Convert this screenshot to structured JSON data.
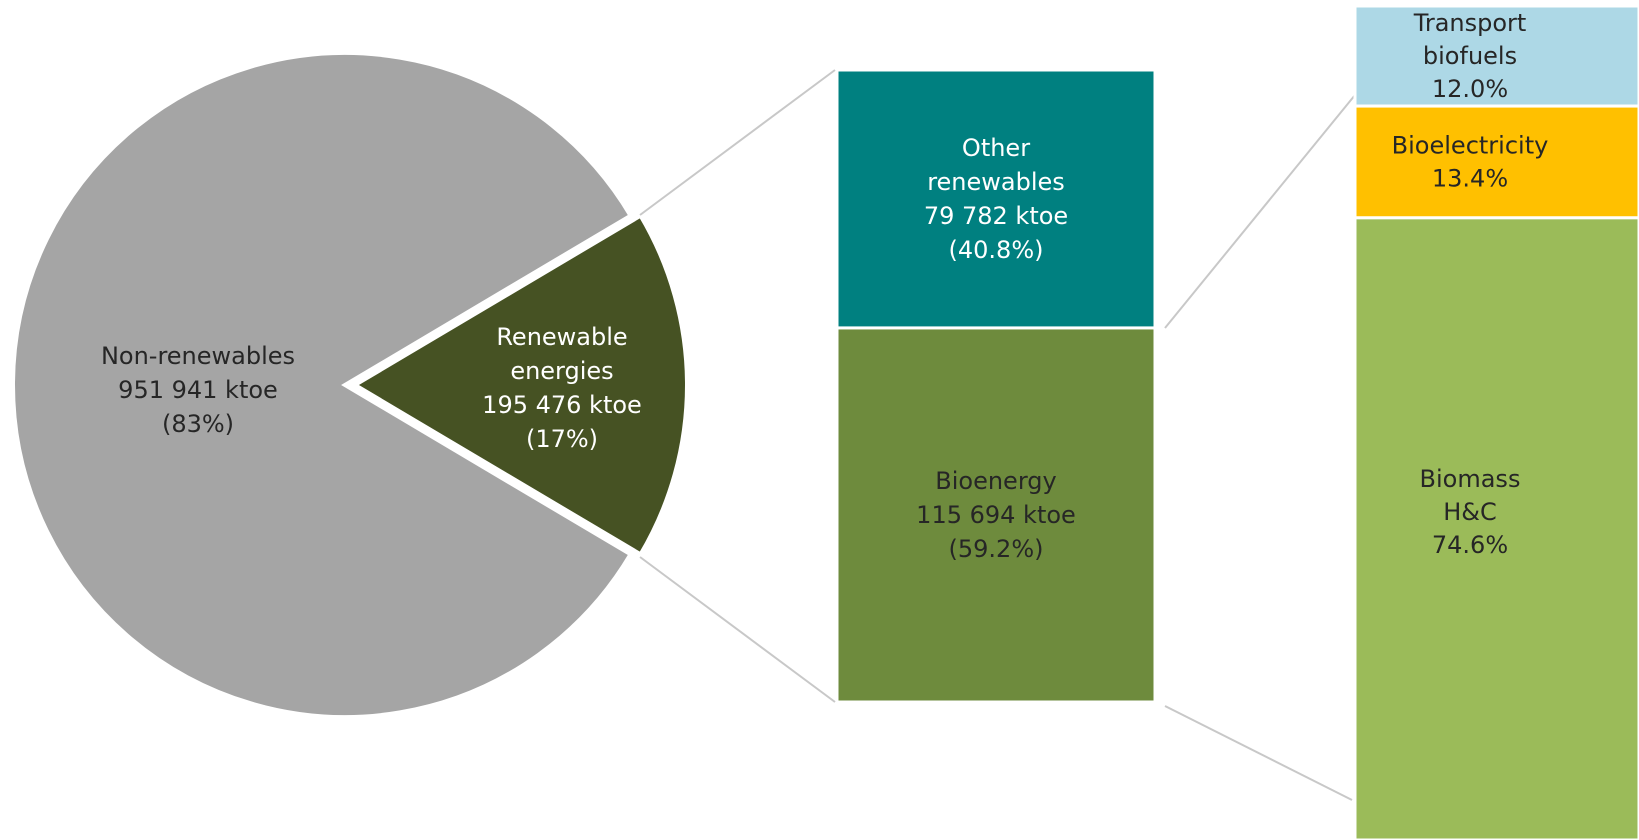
{
  "chart_data": {
    "type": "bar-of-pie",
    "units": "ktoe",
    "pie": {
      "slices": [
        {
          "key": "non_renewables",
          "name": "Non-renewables",
          "value": 951941,
          "value_label": "951 941 ktoe",
          "percent_label": "(83%)",
          "color": "#a5a5a5",
          "text_color": "#262626"
        },
        {
          "key": "renewables",
          "name_lines": [
            "Renewable",
            "energies"
          ],
          "value": 195476,
          "value_label": "195 476 ktoe",
          "percent_label": "(17%)",
          "color": "#465223",
          "text_color": "#ffffff"
        }
      ]
    },
    "bar1": {
      "segments": [
        {
          "key": "other_renewables",
          "name_lines": [
            "Other",
            "renewables"
          ],
          "value": 79782,
          "value_label": "79 782 ktoe",
          "percent_label": "(40.8%)",
          "color": "#008080",
          "text_color": "#ffffff"
        },
        {
          "key": "bioenergy",
          "name_lines": [
            "Bioenergy"
          ],
          "value": 115694,
          "value_label": "115 694 ktoe",
          "percent_label": "(59.2%)",
          "color": "#6e8b3d",
          "text_color": "#262626"
        }
      ]
    },
    "bar2": {
      "segments": [
        {
          "key": "transport_biofuels",
          "name_lines": [
            "Transport",
            "biofuels"
          ],
          "percent": 12.0,
          "percent_label": "12.0%",
          "color": "#add8e6",
          "text_color": "#262626"
        },
        {
          "key": "bioelectricity",
          "name_lines": [
            "Bioelectricity"
          ],
          "percent": 13.4,
          "percent_label": "13.4%",
          "color": "#ffc000",
          "text_color": "#262626"
        },
        {
          "key": "biomass_hc",
          "name_lines": [
            "Biomass",
            "H&C"
          ],
          "percent": 74.6,
          "percent_label": "74.6%",
          "color": "#9bbb59",
          "text_color": "#262626"
        }
      ]
    }
  }
}
